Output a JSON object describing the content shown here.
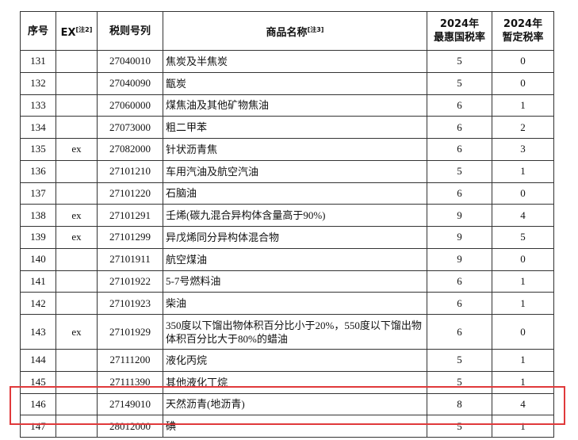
{
  "table": {
    "header": {
      "no": "序号",
      "ex": "EX",
      "ex_note": "[注2]",
      "code": "税则号列",
      "name": "商品名称",
      "name_note": "[注3]",
      "mfn": [
        "2024年",
        "最惠国税率"
      ],
      "provisional": [
        "2024年",
        "暂定税率"
      ]
    },
    "rows": [
      [
        "131",
        "",
        "27040010",
        "焦炭及半焦炭",
        5,
        0
      ],
      [
        "132",
        "",
        "27040090",
        "甑炭",
        5,
        0
      ],
      [
        "133",
        "",
        "27060000",
        "煤焦油及其他矿物焦油",
        6,
        1
      ],
      [
        "134",
        "",
        "27073000",
        "粗二甲苯",
        6,
        2
      ],
      [
        "135",
        "ex",
        "27082000",
        "针状沥青焦",
        6,
        3
      ],
      [
        "136",
        "",
        "27101210",
        "车用汽油及航空汽油",
        5,
        1
      ],
      [
        "137",
        "",
        "27101220",
        "石脑油",
        6,
        0
      ],
      [
        "138",
        "ex",
        "27101291",
        "壬烯(碳九混合异构体含量高于90%)",
        9,
        4
      ],
      [
        "139",
        "ex",
        "27101299",
        "异戊烯同分异构体混合物",
        9,
        5
      ],
      [
        "140",
        "",
        "27101911",
        "航空煤油",
        9,
        0
      ],
      [
        "141",
        "",
        "27101922",
        "5-7号燃料油",
        6,
        1
      ],
      [
        "142",
        "",
        "27101923",
        "柴油",
        6,
        1
      ],
      [
        "143",
        "ex",
        "27101929",
        "350度以下馏出物体积百分比小于20%，550度以下馏出物体积百分比大于80%的蜡油",
        6,
        0
      ],
      [
        "144",
        "",
        "27111200",
        "液化丙烷",
        5,
        1
      ],
      [
        "145",
        "",
        "27111390",
        "其他液化丁烷",
        5,
        1
      ],
      [
        "146",
        "",
        "27149010",
        "天然沥青(地沥青)",
        8,
        4
      ],
      [
        "147",
        "",
        "28012000",
        "碘",
        5,
        1
      ]
    ]
  }
}
